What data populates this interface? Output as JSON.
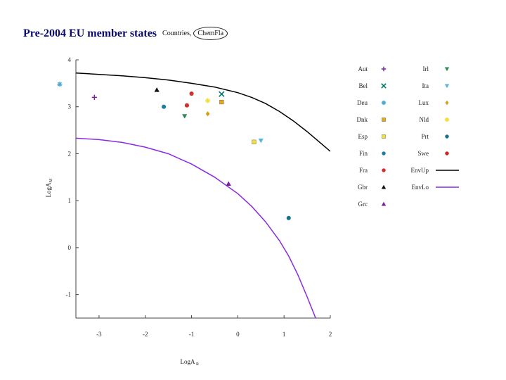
{
  "header": {
    "title": "Pre-2004 EU member states",
    "tag_countries": "Countries,",
    "tag_chemfla": "ChemFla"
  },
  "chart_data": {
    "type": "scatter",
    "xlabel": "LogA",
    "xlabel_sub": "R",
    "ylabel": "LogA",
    "ylabel_sub": "M",
    "xlim": [
      -3.5,
      2
    ],
    "ylim": [
      -1.5,
      4
    ],
    "xticks": [
      -3,
      -2,
      -1,
      0,
      1,
      2
    ],
    "yticks": [
      -1,
      0,
      1,
      2,
      3,
      4
    ],
    "xticklabels": [
      "-3",
      "-2",
      "-1",
      "0",
      "1",
      "2"
    ],
    "yticklabels": [
      "-1",
      "0",
      "1",
      "2",
      "3",
      "4"
    ],
    "grid": false,
    "legend_position": "right",
    "series": [
      {
        "name": "Aut",
        "marker": "plus",
        "color": "#7b1fa2",
        "x": [
          -3.1
        ],
        "y": [
          3.2
        ]
      },
      {
        "name": "Bel",
        "marker": "cross",
        "color": "#00796b",
        "x": [
          -0.35
        ],
        "y": [
          3.27
        ]
      },
      {
        "name": "Deu",
        "marker": "star",
        "color": "#4fa8cf",
        "x": [
          -3.85
        ],
        "y": [
          3.48
        ]
      },
      {
        "name": "Dnk",
        "marker": "square",
        "color": "#e6a817",
        "x": [
          -0.35
        ],
        "y": [
          3.1
        ]
      },
      {
        "name": "Esp",
        "marker": "square",
        "color": "#f2df3a",
        "x": [
          0.35
        ],
        "y": [
          2.25
        ]
      },
      {
        "name": "Fin",
        "marker": "circle",
        "color": "#1a7fa0",
        "x": [
          -1.6
        ],
        "y": [
          3.0
        ]
      },
      {
        "name": "Fra",
        "marker": "circle",
        "color": "#d32f2f",
        "x": [
          -1.0,
          -1.1
        ],
        "y": [
          3.28,
          3.03
        ]
      },
      {
        "name": "Gbr",
        "marker": "triangle",
        "color": "#111111",
        "x": [
          -1.75
        ],
        "y": [
          3.36
        ]
      },
      {
        "name": "Grc",
        "marker": "triangle",
        "color": "#7b1fa2",
        "x": [
          -0.2
        ],
        "y": [
          1.36
        ]
      },
      {
        "name": "Irl",
        "marker": "triangle-down",
        "color": "#2e8b57",
        "x": [
          -1.15
        ],
        "y": [
          2.8
        ]
      },
      {
        "name": "Ita",
        "marker": "triangle-down",
        "color": "#5ab4dc",
        "x": [
          0.5
        ],
        "y": [
          2.28
        ]
      },
      {
        "name": "Lux",
        "marker": "diamond",
        "color": "#d4a017",
        "x": [
          -0.65
        ],
        "y": [
          2.85
        ]
      },
      {
        "name": "Nld",
        "marker": "star",
        "color": "#f2df3a",
        "x": [
          -0.65
        ],
        "y": [
          3.13
        ]
      },
      {
        "name": "Prt",
        "marker": "circle",
        "color": "#1a6f8a",
        "x": [
          1.1
        ],
        "y": [
          0.63
        ]
      },
      {
        "name": "Swe",
        "marker": "circle",
        "color": "#c62828",
        "x": [],
        "y": []
      }
    ],
    "lines": [
      {
        "name": "EnvUp",
        "color": "#000000",
        "x": [
          -3.5,
          -3.0,
          -2.5,
          -2.0,
          -1.5,
          -1.0,
          -0.5,
          0.0,
          0.3,
          0.6,
          0.9,
          1.2,
          1.5,
          1.8,
          2.0
        ],
        "y": [
          3.72,
          3.69,
          3.66,
          3.62,
          3.57,
          3.5,
          3.42,
          3.3,
          3.2,
          3.07,
          2.9,
          2.7,
          2.47,
          2.22,
          2.05
        ]
      },
      {
        "name": "EnvLo",
        "color": "#8a2be2",
        "x": [
          -3.5,
          -3.0,
          -2.5,
          -2.0,
          -1.5,
          -1.0,
          -0.5,
          0.0,
          0.3,
          0.6,
          0.9,
          1.1,
          1.3,
          1.5,
          1.65,
          1.8
        ],
        "y": [
          2.33,
          2.3,
          2.24,
          2.14,
          2.0,
          1.78,
          1.5,
          1.15,
          0.88,
          0.55,
          0.15,
          -0.18,
          -0.58,
          -1.05,
          -1.42,
          -1.8
        ]
      }
    ]
  }
}
